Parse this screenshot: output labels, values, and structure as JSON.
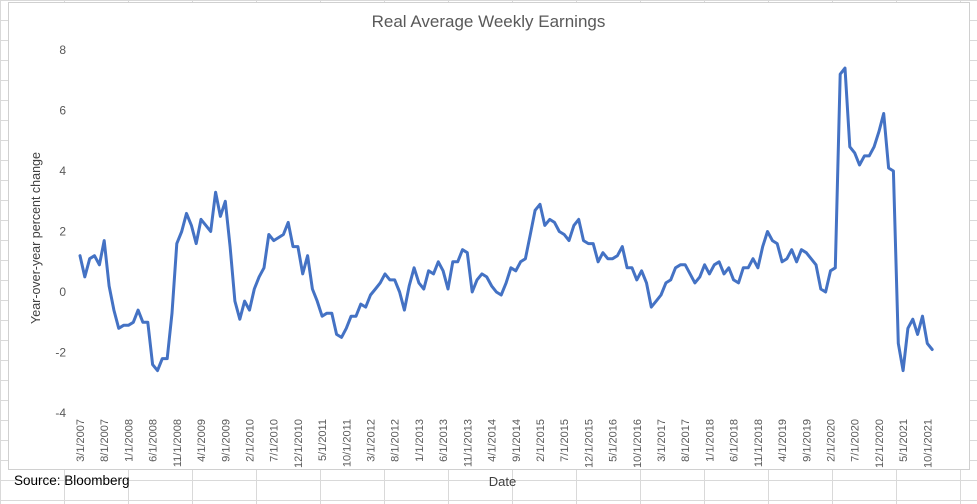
{
  "chart_data": {
    "type": "line",
    "title": "Real Average Weekly Earnings",
    "xlabel": "Date",
    "ylabel": "Year-over-year percent change",
    "ylim": [
      -4,
      8
    ],
    "yticks": [
      -4,
      -2,
      0,
      2,
      4,
      6,
      8
    ],
    "xlim": [
      "3/1/2007",
      "12/1/2021"
    ],
    "grid": false,
    "legend": "none",
    "line_color": "#4472C4",
    "x_tick_labels": [
      "3/1/2007",
      "8/1/2007",
      "1/1/2008",
      "6/1/2008",
      "11/1/2008",
      "4/1/2009",
      "9/1/2009",
      "2/1/2010",
      "7/1/2010",
      "12/1/2010",
      "5/1/2011",
      "10/1/2011",
      "3/1/2012",
      "8/1/2012",
      "1/1/2013",
      "6/1/2013",
      "11/1/2013",
      "4/1/2014",
      "9/1/2014",
      "2/1/2015",
      "7/1/2015",
      "12/1/2015",
      "5/1/2016",
      "10/1/2016",
      "3/1/2017",
      "8/1/2017",
      "1/1/2018",
      "6/1/2018",
      "11/1/2018",
      "4/1/2019",
      "9/1/2019",
      "2/1/2020",
      "7/1/2020",
      "12/1/2020",
      "5/1/2021",
      "10/1/2021"
    ],
    "series": [
      {
        "values": [
          [
            "3/1/2007",
            1.2
          ],
          [
            "4/1/2007",
            0.5
          ],
          [
            "5/1/2007",
            1.1
          ],
          [
            "6/1/2007",
            1.2
          ],
          [
            "7/1/2007",
            0.9
          ],
          [
            "8/1/2007",
            1.7
          ],
          [
            "9/1/2007",
            0.2
          ],
          [
            "10/1/2007",
            -0.6
          ],
          [
            "11/1/2007",
            -1.2
          ],
          [
            "12/1/2007",
            -1.1
          ],
          [
            "1/1/2008",
            -1.1
          ],
          [
            "2/1/2008",
            -1.0
          ],
          [
            "3/1/2008",
            -0.6
          ],
          [
            "4/1/2008",
            -1.0
          ],
          [
            "5/1/2008",
            -1.0
          ],
          [
            "6/1/2008",
            -2.4
          ],
          [
            "7/1/2008",
            -2.6
          ],
          [
            "8/1/2008",
            -2.2
          ],
          [
            "9/1/2008",
            -2.2
          ],
          [
            "10/1/2008",
            -0.7
          ],
          [
            "11/1/2008",
            1.6
          ],
          [
            "12/1/2008",
            2.0
          ],
          [
            "1/1/2009",
            2.6
          ],
          [
            "2/1/2009",
            2.2
          ],
          [
            "3/1/2009",
            1.6
          ],
          [
            "4/1/2009",
            2.4
          ],
          [
            "5/1/2009",
            2.2
          ],
          [
            "6/1/2009",
            2.0
          ],
          [
            "7/1/2009",
            3.3
          ],
          [
            "8/1/2009",
            2.5
          ],
          [
            "9/1/2009",
            3.0
          ],
          [
            "10/1/2009",
            1.5
          ],
          [
            "11/1/2009",
            -0.3
          ],
          [
            "12/1/2009",
            -0.9
          ],
          [
            "1/1/2010",
            -0.3
          ],
          [
            "2/1/2010",
            -0.6
          ],
          [
            "3/1/2010",
            0.1
          ],
          [
            "4/1/2010",
            0.5
          ],
          [
            "5/1/2010",
            0.8
          ],
          [
            "6/1/2010",
            1.9
          ],
          [
            "7/1/2010",
            1.7
          ],
          [
            "8/1/2010",
            1.8
          ],
          [
            "9/1/2010",
            1.9
          ],
          [
            "10/1/2010",
            2.3
          ],
          [
            "11/1/2010",
            1.5
          ],
          [
            "12/1/2010",
            1.5
          ],
          [
            "1/1/2011",
            0.6
          ],
          [
            "2/1/2011",
            1.2
          ],
          [
            "3/1/2011",
            0.1
          ],
          [
            "4/1/2011",
            -0.3
          ],
          [
            "5/1/2011",
            -0.8
          ],
          [
            "6/1/2011",
            -0.7
          ],
          [
            "7/1/2011",
            -0.7
          ],
          [
            "8/1/2011",
            -1.4
          ],
          [
            "9/1/2011",
            -1.5
          ],
          [
            "10/1/2011",
            -1.2
          ],
          [
            "11/1/2011",
            -0.8
          ],
          [
            "12/1/2011",
            -0.8
          ],
          [
            "1/1/2012",
            -0.4
          ],
          [
            "2/1/2012",
            -0.5
          ],
          [
            "3/1/2012",
            -0.1
          ],
          [
            "4/1/2012",
            0.1
          ],
          [
            "5/1/2012",
            0.3
          ],
          [
            "6/1/2012",
            0.6
          ],
          [
            "7/1/2012",
            0.4
          ],
          [
            "8/1/2012",
            0.4
          ],
          [
            "9/1/2012",
            0.0
          ],
          [
            "10/1/2012",
            -0.6
          ],
          [
            "11/1/2012",
            0.2
          ],
          [
            "12/1/2012",
            0.8
          ],
          [
            "1/1/2013",
            0.3
          ],
          [
            "2/1/2013",
            0.1
          ],
          [
            "3/1/2013",
            0.7
          ],
          [
            "4/1/2013",
            0.6
          ],
          [
            "5/1/2013",
            1.0
          ],
          [
            "6/1/2013",
            0.7
          ],
          [
            "7/1/2013",
            0.1
          ],
          [
            "8/1/2013",
            1.0
          ],
          [
            "9/1/2013",
            1.0
          ],
          [
            "10/1/2013",
            1.4
          ],
          [
            "11/1/2013",
            1.3
          ],
          [
            "12/1/2013",
            0.0
          ],
          [
            "1/1/2014",
            0.4
          ],
          [
            "2/1/2014",
            0.6
          ],
          [
            "3/1/2014",
            0.5
          ],
          [
            "4/1/2014",
            0.2
          ],
          [
            "5/1/2014",
            0.0
          ],
          [
            "6/1/2014",
            -0.1
          ],
          [
            "7/1/2014",
            0.3
          ],
          [
            "8/1/2014",
            0.8
          ],
          [
            "9/1/2014",
            0.7
          ],
          [
            "10/1/2014",
            1.0
          ],
          [
            "11/1/2014",
            1.1
          ],
          [
            "12/1/2014",
            1.9
          ],
          [
            "1/1/2015",
            2.7
          ],
          [
            "2/1/2015",
            2.9
          ],
          [
            "3/1/2015",
            2.2
          ],
          [
            "4/1/2015",
            2.4
          ],
          [
            "5/1/2015",
            2.3
          ],
          [
            "6/1/2015",
            2.0
          ],
          [
            "7/1/2015",
            1.9
          ],
          [
            "8/1/2015",
            1.7
          ],
          [
            "9/1/2015",
            2.2
          ],
          [
            "10/1/2015",
            2.4
          ],
          [
            "11/1/2015",
            1.7
          ],
          [
            "12/1/2015",
            1.6
          ],
          [
            "1/1/2016",
            1.6
          ],
          [
            "2/1/2016",
            1.0
          ],
          [
            "3/1/2016",
            1.3
          ],
          [
            "4/1/2016",
            1.1
          ],
          [
            "5/1/2016",
            1.1
          ],
          [
            "6/1/2016",
            1.2
          ],
          [
            "7/1/2016",
            1.5
          ],
          [
            "8/1/2016",
            0.8
          ],
          [
            "9/1/2016",
            0.8
          ],
          [
            "10/1/2016",
            0.4
          ],
          [
            "11/1/2016",
            0.7
          ],
          [
            "12/1/2016",
            0.3
          ],
          [
            "1/1/2017",
            -0.5
          ],
          [
            "2/1/2017",
            -0.3
          ],
          [
            "3/1/2017",
            -0.1
          ],
          [
            "4/1/2017",
            0.3
          ],
          [
            "5/1/2017",
            0.4
          ],
          [
            "6/1/2017",
            0.8
          ],
          [
            "7/1/2017",
            0.9
          ],
          [
            "8/1/2017",
            0.9
          ],
          [
            "9/1/2017",
            0.6
          ],
          [
            "10/1/2017",
            0.3
          ],
          [
            "11/1/2017",
            0.5
          ],
          [
            "12/1/2017",
            0.9
          ],
          [
            "1/1/2018",
            0.6
          ],
          [
            "2/1/2018",
            0.9
          ],
          [
            "3/1/2018",
            1.0
          ],
          [
            "4/1/2018",
            0.6
          ],
          [
            "5/1/2018",
            0.8
          ],
          [
            "6/1/2018",
            0.4
          ],
          [
            "7/1/2018",
            0.3
          ],
          [
            "8/1/2018",
            0.8
          ],
          [
            "9/1/2018",
            0.8
          ],
          [
            "10/1/2018",
            1.1
          ],
          [
            "11/1/2018",
            0.8
          ],
          [
            "12/1/2018",
            1.5
          ],
          [
            "1/1/2019",
            2.0
          ],
          [
            "2/1/2019",
            1.7
          ],
          [
            "3/1/2019",
            1.6
          ],
          [
            "4/1/2019",
            1.0
          ],
          [
            "5/1/2019",
            1.1
          ],
          [
            "6/1/2019",
            1.4
          ],
          [
            "7/1/2019",
            1.0
          ],
          [
            "8/1/2019",
            1.4
          ],
          [
            "9/1/2019",
            1.3
          ],
          [
            "10/1/2019",
            1.1
          ],
          [
            "11/1/2019",
            0.9
          ],
          [
            "12/1/2019",
            0.1
          ],
          [
            "1/1/2020",
            0.0
          ],
          [
            "2/1/2020",
            0.7
          ],
          [
            "3/1/2020",
            0.8
          ],
          [
            "4/1/2020",
            7.2
          ],
          [
            "5/1/2020",
            7.4
          ],
          [
            "6/1/2020",
            4.8
          ],
          [
            "7/1/2020",
            4.6
          ],
          [
            "8/1/2020",
            4.2
          ],
          [
            "9/1/2020",
            4.5
          ],
          [
            "10/1/2020",
            4.5
          ],
          [
            "11/1/2020",
            4.8
          ],
          [
            "12/1/2020",
            5.3
          ],
          [
            "1/1/2021",
            5.9
          ],
          [
            "2/1/2021",
            4.1
          ],
          [
            "3/1/2021",
            4.0
          ],
          [
            "4/1/2021",
            -1.7
          ],
          [
            "5/1/2021",
            -2.6
          ],
          [
            "6/1/2021",
            -1.2
          ],
          [
            "7/1/2021",
            -0.9
          ],
          [
            "8/1/2021",
            -1.4
          ],
          [
            "9/1/2021",
            -0.8
          ],
          [
            "10/1/2021",
            -1.7
          ],
          [
            "11/1/2021",
            -1.9
          ]
        ]
      }
    ]
  },
  "footer": {
    "source": "Source: Bloomberg"
  }
}
